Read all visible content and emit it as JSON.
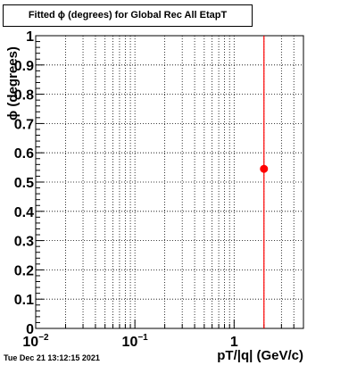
{
  "chart_data": {
    "type": "scatter",
    "title": "Fitted ϕ (degrees) for Global Rec All EtapT",
    "xlabel": "pT/|q| (GeV/c)",
    "ylabel": "ϕ (degrees)",
    "xscale": "log",
    "xlim": [
      0.01,
      5
    ],
    "ylim": [
      0,
      1
    ],
    "grid": true,
    "x_ticks": [
      {
        "value": 0.01,
        "base": "10",
        "exp": "−2"
      },
      {
        "value": 0.1,
        "base": "10",
        "exp": "−1"
      },
      {
        "value": 1,
        "base": "1",
        "exp": ""
      }
    ],
    "y_ticks": [
      "0",
      "0.1",
      "0.2",
      "0.3",
      "0.4",
      "0.5",
      "0.6",
      "0.7",
      "0.8",
      "0.9",
      "1"
    ],
    "points": [
      {
        "x": 2.0,
        "y": 0.545
      }
    ],
    "marker_color": "#ff0000",
    "vertical_line": {
      "x": 2.0,
      "color": "#ff0000"
    }
  },
  "footer": "Tue Dec 21 13:12:15 2021"
}
